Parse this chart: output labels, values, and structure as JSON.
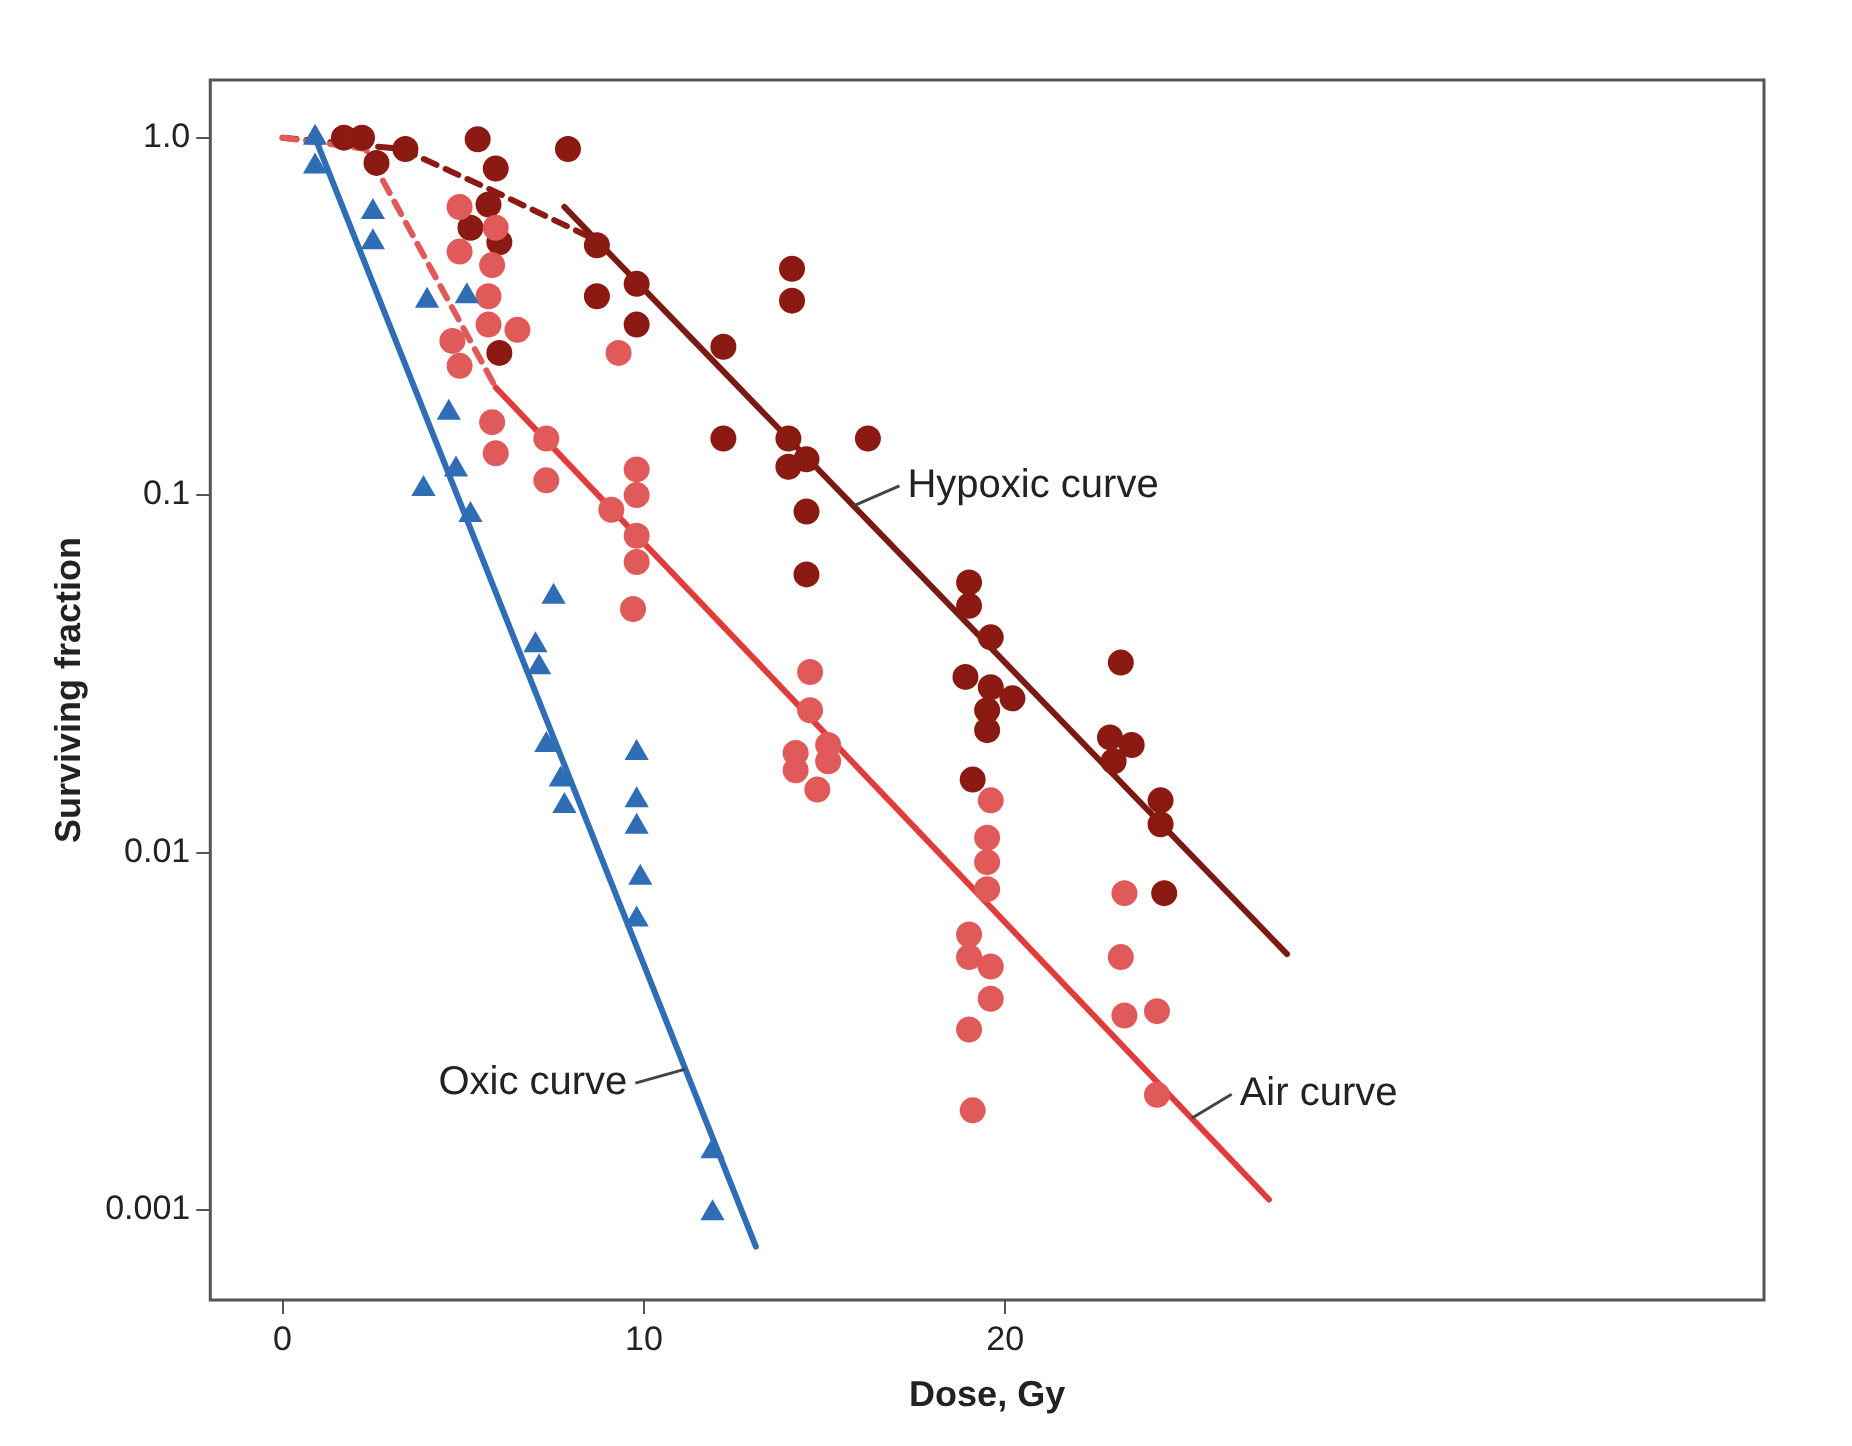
{
  "chart_data": {
    "type": "scatter",
    "xlabel": "Dose, Gy",
    "ylabel": "Surviving fraction",
    "log": "y",
    "grid": false,
    "legend": false,
    "xlim": [
      -2,
      41
    ],
    "xticks": [
      0,
      10,
      20
    ],
    "ylim": [
      0.00056,
      1.45
    ],
    "yticks": [
      0.001,
      0.01,
      0.1,
      {
        "value": 1,
        "label": "1.0"
      }
    ],
    "series": [
      {
        "marker": "triangle",
        "color": "#2f6db5",
        "x": [
          0.9,
          0.9,
          2.5,
          2.5,
          4.0,
          5.1,
          4.6,
          3.9,
          4.8,
          5.2,
          7.5,
          7.0,
          7.1,
          7.3,
          7.7,
          7.8,
          9.8,
          9.8,
          9.8,
          9.9,
          9.8,
          11.9,
          11.9
        ],
        "values": [
          1.0,
          0.83,
          0.62,
          0.51,
          0.35,
          0.36,
          0.17,
          0.104,
          0.118,
          0.088,
          0.052,
          0.038,
          0.033,
          0.02,
          0.016,
          0.0135,
          0.019,
          0.014,
          0.0118,
          0.0085,
          0.0065,
          0.00146,
          0.00098
        ]
      },
      {
        "marker": "circle",
        "color": "#e05a5a",
        "x": [
          4.9,
          4.9,
          5.9,
          5.8,
          5.7,
          5.7,
          6.5,
          4.7,
          4.9,
          5.8,
          5.9,
          7.3,
          7.3,
          9.3,
          9.8,
          9.8,
          9.1,
          9.8,
          9.8,
          9.7,
          14.6,
          14.6,
          14.2,
          15.1,
          15.1,
          14.2,
          14.8,
          19.6,
          19.5,
          19.5,
          19.5,
          19.0,
          19.0,
          19.6,
          19.6,
          19.0,
          19.1,
          23.3,
          23.2,
          23.3,
          24.2,
          24.2
        ],
        "values": [
          0.64,
          0.48,
          0.56,
          0.44,
          0.36,
          0.3,
          0.29,
          0.27,
          0.23,
          0.16,
          0.131,
          0.144,
          0.11,
          0.25,
          0.118,
          0.1,
          0.091,
          0.077,
          0.065,
          0.048,
          0.032,
          0.025,
          0.019,
          0.02,
          0.018,
          0.017,
          0.015,
          0.014,
          0.011,
          0.0094,
          0.0079,
          0.0059,
          0.0051,
          0.0048,
          0.0039,
          0.0032,
          0.0019,
          0.0077,
          0.0051,
          0.0035,
          0.0036,
          0.0021
        ]
      },
      {
        "marker": "circle",
        "color": "#8b1a12",
        "x": [
          1.7,
          2.2,
          2.6,
          3.4,
          5.4,
          5.9,
          5.7,
          5.2,
          6.0,
          6.0,
          7.9,
          8.7,
          8.7,
          9.8,
          9.8,
          12.2,
          12.2,
          14.1,
          14.1,
          14.0,
          14.0,
          14.5,
          14.5,
          14.5,
          16.2,
          19.0,
          19.0,
          19.6,
          18.9,
          19.6,
          20.2,
          19.5,
          19.5,
          19.1,
          23.2,
          22.9,
          23.5,
          23.0,
          24.3,
          24.3,
          24.4
        ],
        "values": [
          1.0,
          1.0,
          0.85,
          0.93,
          0.99,
          0.82,
          0.65,
          0.56,
          0.51,
          0.25,
          0.93,
          0.5,
          0.36,
          0.39,
          0.3,
          0.26,
          0.144,
          0.43,
          0.35,
          0.144,
          0.12,
          0.126,
          0.09,
          0.06,
          0.144,
          0.057,
          0.049,
          0.04,
          0.031,
          0.029,
          0.027,
          0.025,
          0.022,
          0.016,
          0.034,
          0.021,
          0.02,
          0.018,
          0.014,
          0.012,
          0.0077
        ]
      },
      {
        "type": "line",
        "name": "Oxic curve",
        "marker": "none",
        "line_style": "solid",
        "color": "#2f6db5",
        "x": [
          0.9,
          13.1
        ],
        "values": [
          1.0,
          0.00079
        ]
      },
      {
        "type": "line",
        "marker": "none",
        "line_style": "dashed",
        "color": "#e05a5a",
        "x": [
          0,
          2.3,
          5.9
        ],
        "values": [
          1.0,
          0.93,
          0.2
        ]
      },
      {
        "type": "line",
        "name": "Air curve",
        "marker": "none",
        "line_style": "solid",
        "color": "#e03c3c",
        "x": [
          5.9,
          27.3
        ],
        "values": [
          0.2,
          0.00107
        ]
      },
      {
        "type": "line",
        "marker": "none",
        "line_style": "dashed",
        "color": "#8b1a12",
        "x": [
          0,
          3.3,
          5.7,
          8.8
        ],
        "values": [
          1.0,
          0.93,
          0.72,
          0.51
        ]
      },
      {
        "type": "line",
        "name": "Hypoxic curve",
        "marker": "none",
        "line_style": "solid",
        "color": "#7a1a12",
        "x": [
          7.8,
          27.8
        ],
        "values": [
          0.64,
          0.0052
        ]
      }
    ]
  }
}
